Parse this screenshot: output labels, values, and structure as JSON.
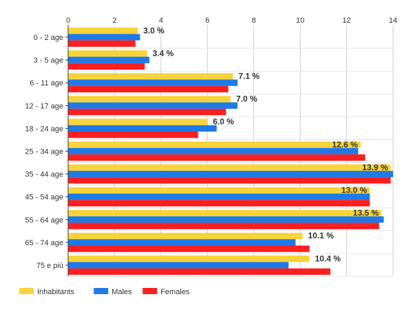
{
  "chart_data": {
    "type": "bar",
    "orientation": "horizontal",
    "categories": [
      "0 - 2 age",
      "3 - 5 age",
      "6 - 11 age",
      "12 - 17 age",
      "18 - 24 age",
      "25 - 34 age",
      "35 - 44 age",
      "45 - 54 age",
      "55 - 64 age",
      "65 - 74 age",
      "75 e più"
    ],
    "series": [
      {
        "name": "Inhabitants",
        "color": "#f8d43a",
        "values": [
          3.0,
          3.4,
          7.1,
          7.0,
          6.0,
          12.6,
          13.9,
          13.0,
          13.5,
          10.1,
          10.4
        ]
      },
      {
        "name": "Males",
        "color": "#1f7ae8",
        "values": [
          3.1,
          3.5,
          7.3,
          7.3,
          6.4,
          12.5,
          14.0,
          13.0,
          13.6,
          9.8,
          9.5
        ]
      },
      {
        "name": "Females",
        "color": "#fc1f1f",
        "values": [
          2.9,
          3.3,
          6.9,
          6.8,
          5.6,
          12.8,
          13.9,
          13.0,
          13.4,
          10.4,
          11.3
        ]
      }
    ],
    "data_labels": [
      "3.0 %",
      "3.4 %",
      "7.1 %",
      "7.0 %",
      "6.0 %",
      "12.6 %",
      "13.9 %",
      "13.0 %",
      "13.5 %",
      "10.1 %",
      "10.4 %"
    ],
    "xlim": [
      0,
      14
    ],
    "xticks": [
      "0",
      "2",
      "4",
      "6",
      "8",
      "10",
      "12",
      "14"
    ],
    "xtick_values": [
      0,
      2,
      4,
      6,
      8,
      10,
      12,
      14
    ],
    "x_axis_position": "top",
    "grid": true,
    "legend_position": "bottom-left",
    "title": "",
    "xlabel": "",
    "ylabel": ""
  }
}
